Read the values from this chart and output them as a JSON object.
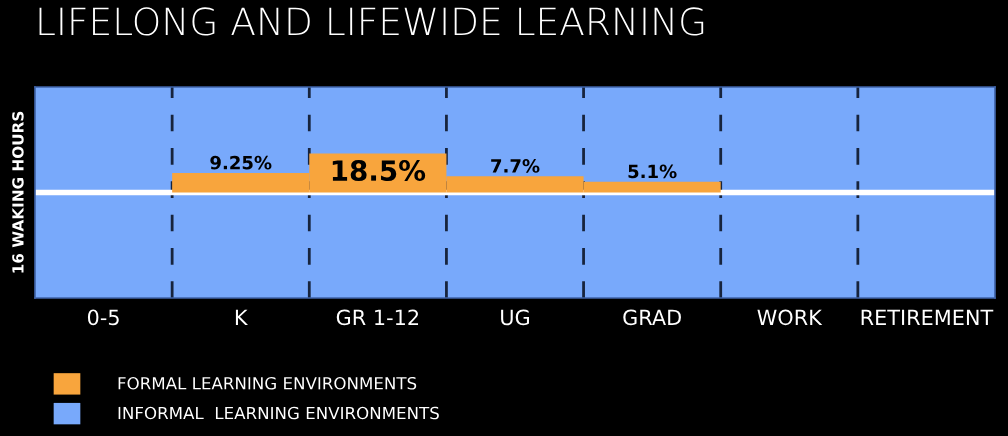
{
  "chart_data": {
    "type": "bar",
    "title": "LIFELONG AND LIFEWIDE LEARNING",
    "ylabel": "16 WAKING HOURS",
    "categories": [
      "0-5",
      "K",
      "GR 1-12",
      "UG",
      "GRAD",
      "WORK",
      "RETIREMENT"
    ],
    "series": [
      {
        "name": "FORMAL LEARNING ENVIRONMENTS",
        "color": "#f8a53d",
        "values": [
          null,
          9.25,
          18.5,
          7.7,
          5.1,
          null,
          null
        ],
        "value_labels": [
          null,
          "9.25%",
          "18.5%",
          "7.7%",
          "5.1%",
          null,
          null
        ]
      }
    ],
    "bands": [
      {
        "axis": "y",
        "from": -50,
        "to": 50,
        "label": "INFORMAL  LEARNING ENVIRONMENTS",
        "color": "#78a9fb"
      }
    ],
    "ref_lines": [
      {
        "axis": "y",
        "value": 0,
        "color": "#ffffff"
      }
    ],
    "grid": "x",
    "legend": "bottom left",
    "tick_labels": "x"
  }
}
